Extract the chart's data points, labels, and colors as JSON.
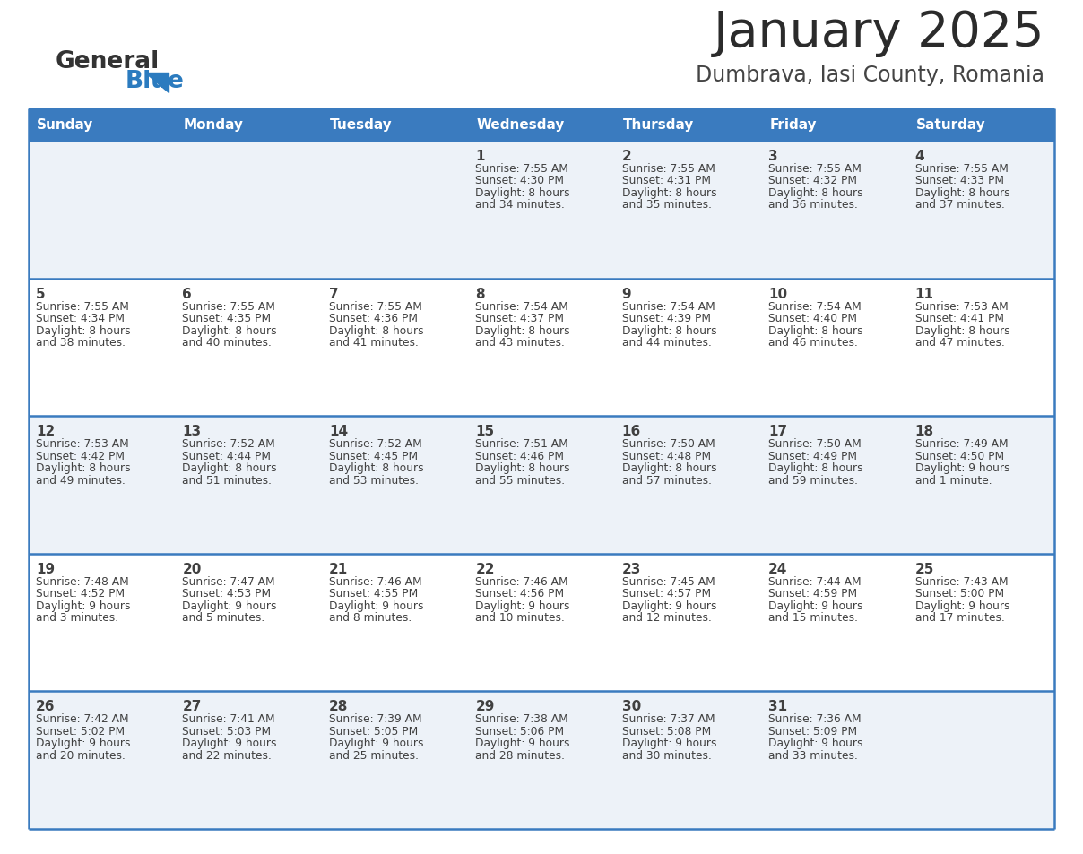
{
  "title": "January 2025",
  "subtitle": "Dumbrava, Iasi County, Romania",
  "header_bg": "#3a7bbf",
  "header_text": "#ffffff",
  "row_bg_odd": "#edf2f8",
  "row_bg_even": "#ffffff",
  "separator_color": "#3a7bbf",
  "text_color": "#404040",
  "days_of_week": [
    "Sunday",
    "Monday",
    "Tuesday",
    "Wednesday",
    "Thursday",
    "Friday",
    "Saturday"
  ],
  "logo_general_color": "#333333",
  "logo_blue_color": "#2b7bbf",
  "calendar_data": [
    [
      null,
      null,
      null,
      {
        "day": 1,
        "sunrise": "7:55 AM",
        "sunset": "4:30 PM",
        "daylight": "8 hours\nand 34 minutes."
      },
      {
        "day": 2,
        "sunrise": "7:55 AM",
        "sunset": "4:31 PM",
        "daylight": "8 hours\nand 35 minutes."
      },
      {
        "day": 3,
        "sunrise": "7:55 AM",
        "sunset": "4:32 PM",
        "daylight": "8 hours\nand 36 minutes."
      },
      {
        "day": 4,
        "sunrise": "7:55 AM",
        "sunset": "4:33 PM",
        "daylight": "8 hours\nand 37 minutes."
      }
    ],
    [
      {
        "day": 5,
        "sunrise": "7:55 AM",
        "sunset": "4:34 PM",
        "daylight": "8 hours\nand 38 minutes."
      },
      {
        "day": 6,
        "sunrise": "7:55 AM",
        "sunset": "4:35 PM",
        "daylight": "8 hours\nand 40 minutes."
      },
      {
        "day": 7,
        "sunrise": "7:55 AM",
        "sunset": "4:36 PM",
        "daylight": "8 hours\nand 41 minutes."
      },
      {
        "day": 8,
        "sunrise": "7:54 AM",
        "sunset": "4:37 PM",
        "daylight": "8 hours\nand 43 minutes."
      },
      {
        "day": 9,
        "sunrise": "7:54 AM",
        "sunset": "4:39 PM",
        "daylight": "8 hours\nand 44 minutes."
      },
      {
        "day": 10,
        "sunrise": "7:54 AM",
        "sunset": "4:40 PM",
        "daylight": "8 hours\nand 46 minutes."
      },
      {
        "day": 11,
        "sunrise": "7:53 AM",
        "sunset": "4:41 PM",
        "daylight": "8 hours\nand 47 minutes."
      }
    ],
    [
      {
        "day": 12,
        "sunrise": "7:53 AM",
        "sunset": "4:42 PM",
        "daylight": "8 hours\nand 49 minutes."
      },
      {
        "day": 13,
        "sunrise": "7:52 AM",
        "sunset": "4:44 PM",
        "daylight": "8 hours\nand 51 minutes."
      },
      {
        "day": 14,
        "sunrise": "7:52 AM",
        "sunset": "4:45 PM",
        "daylight": "8 hours\nand 53 minutes."
      },
      {
        "day": 15,
        "sunrise": "7:51 AM",
        "sunset": "4:46 PM",
        "daylight": "8 hours\nand 55 minutes."
      },
      {
        "day": 16,
        "sunrise": "7:50 AM",
        "sunset": "4:48 PM",
        "daylight": "8 hours\nand 57 minutes."
      },
      {
        "day": 17,
        "sunrise": "7:50 AM",
        "sunset": "4:49 PM",
        "daylight": "8 hours\nand 59 minutes."
      },
      {
        "day": 18,
        "sunrise": "7:49 AM",
        "sunset": "4:50 PM",
        "daylight": "9 hours\nand 1 minute."
      }
    ],
    [
      {
        "day": 19,
        "sunrise": "7:48 AM",
        "sunset": "4:52 PM",
        "daylight": "9 hours\nand 3 minutes."
      },
      {
        "day": 20,
        "sunrise": "7:47 AM",
        "sunset": "4:53 PM",
        "daylight": "9 hours\nand 5 minutes."
      },
      {
        "day": 21,
        "sunrise": "7:46 AM",
        "sunset": "4:55 PM",
        "daylight": "9 hours\nand 8 minutes."
      },
      {
        "day": 22,
        "sunrise": "7:46 AM",
        "sunset": "4:56 PM",
        "daylight": "9 hours\nand 10 minutes."
      },
      {
        "day": 23,
        "sunrise": "7:45 AM",
        "sunset": "4:57 PM",
        "daylight": "9 hours\nand 12 minutes."
      },
      {
        "day": 24,
        "sunrise": "7:44 AM",
        "sunset": "4:59 PM",
        "daylight": "9 hours\nand 15 minutes."
      },
      {
        "day": 25,
        "sunrise": "7:43 AM",
        "sunset": "5:00 PM",
        "daylight": "9 hours\nand 17 minutes."
      }
    ],
    [
      {
        "day": 26,
        "sunrise": "7:42 AM",
        "sunset": "5:02 PM",
        "daylight": "9 hours\nand 20 minutes."
      },
      {
        "day": 27,
        "sunrise": "7:41 AM",
        "sunset": "5:03 PM",
        "daylight": "9 hours\nand 22 minutes."
      },
      {
        "day": 28,
        "sunrise": "7:39 AM",
        "sunset": "5:05 PM",
        "daylight": "9 hours\nand 25 minutes."
      },
      {
        "day": 29,
        "sunrise": "7:38 AM",
        "sunset": "5:06 PM",
        "daylight": "9 hours\nand 28 minutes."
      },
      {
        "day": 30,
        "sunrise": "7:37 AM",
        "sunset": "5:08 PM",
        "daylight": "9 hours\nand 30 minutes."
      },
      {
        "day": 31,
        "sunrise": "7:36 AM",
        "sunset": "5:09 PM",
        "daylight": "9 hours\nand 33 minutes."
      },
      null
    ]
  ]
}
